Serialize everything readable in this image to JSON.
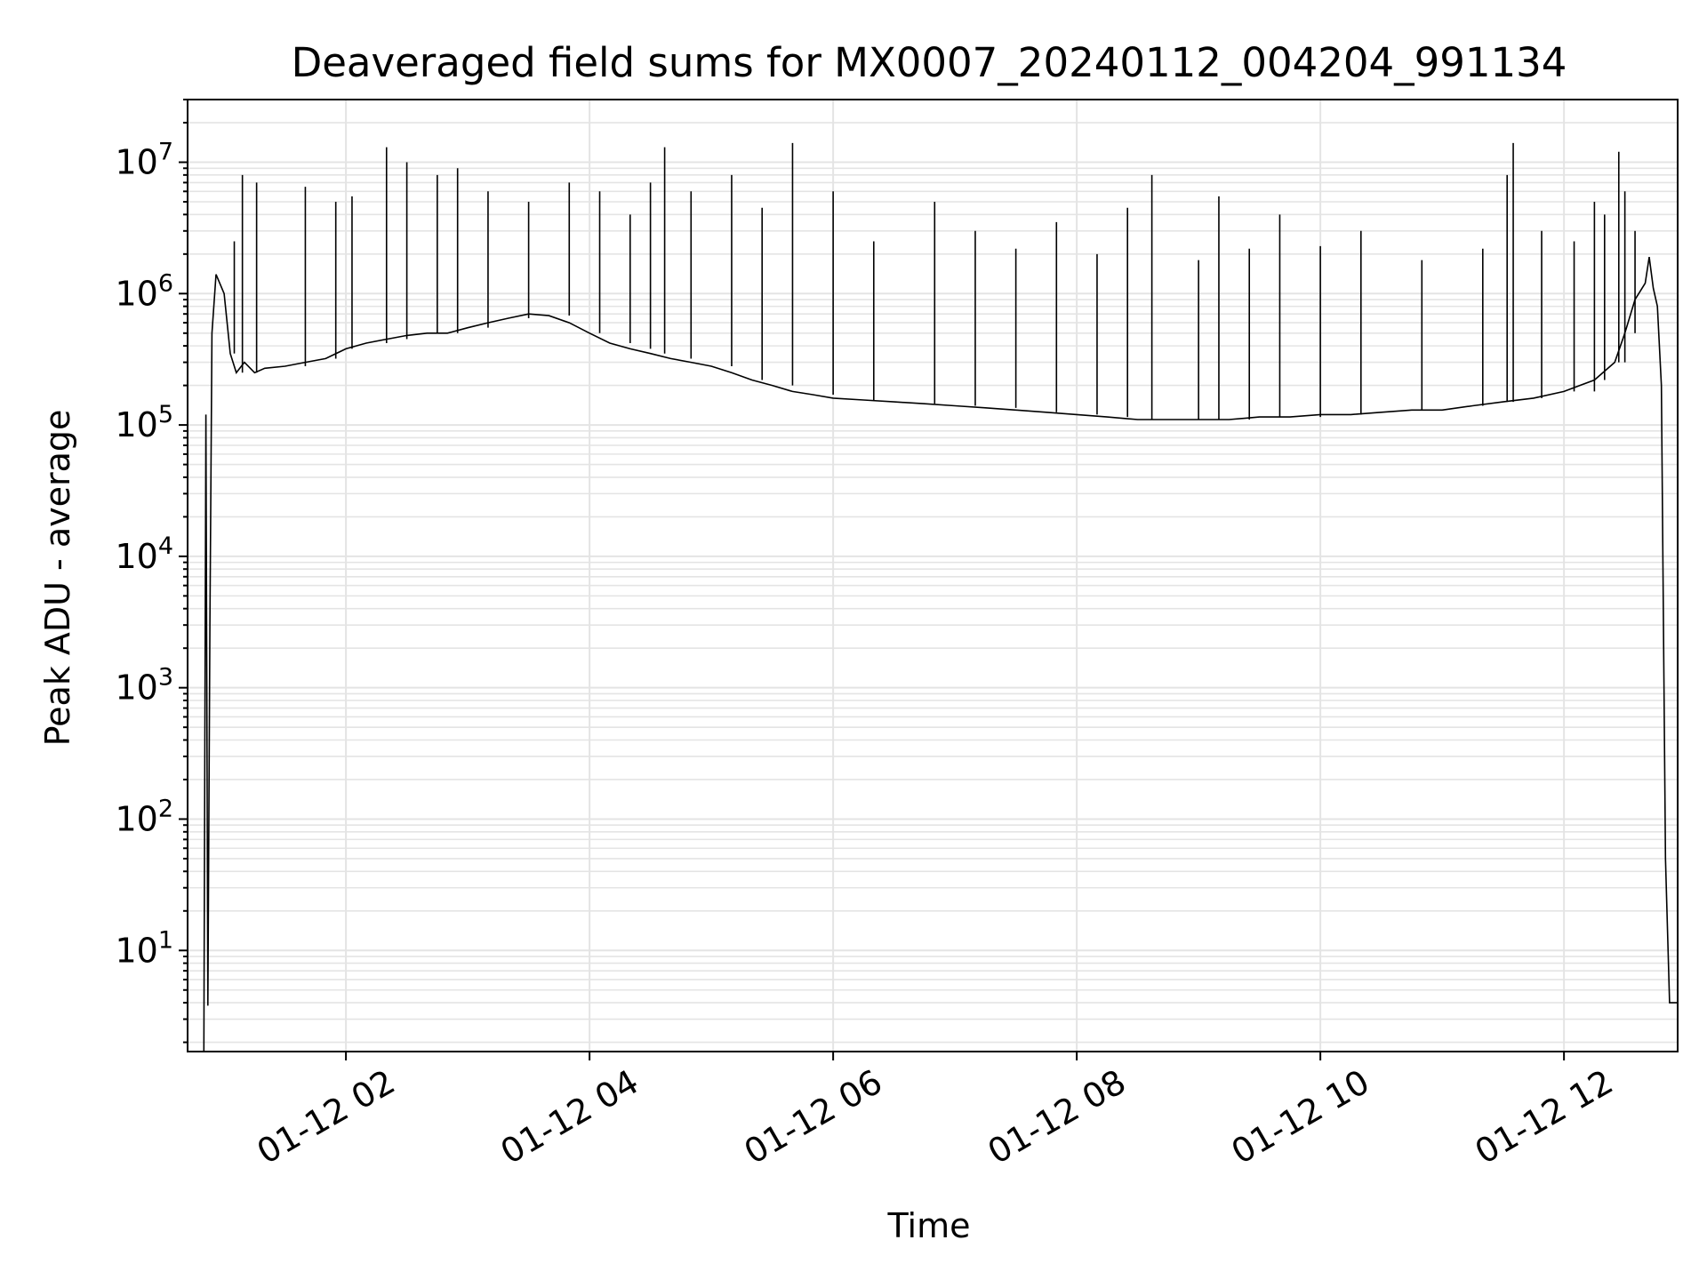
{
  "chart_data": {
    "type": "line",
    "title": "Deaveraged field sums for MX0007_20240112_004204_991134",
    "xlabel": "Time",
    "ylabel": "Peak ADU - average",
    "yscale": "log",
    "ylim": [
      1.7,
      30000000
    ],
    "xlim": [
      "2024-01-12 00:42",
      "2024-01-12 12:56"
    ],
    "grid": true,
    "x_ticks": [
      {
        "value": "2024-01-12 02:00",
        "label": "01-12 02"
      },
      {
        "value": "2024-01-12 04:00",
        "label": "01-12 04"
      },
      {
        "value": "2024-01-12 06:00",
        "label": "01-12 06"
      },
      {
        "value": "2024-01-12 08:00",
        "label": "01-12 08"
      },
      {
        "value": "2024-01-12 10:00",
        "label": "01-12 10"
      },
      {
        "value": "2024-01-12 12:00",
        "label": "01-12 12"
      }
    ],
    "y_ticks": [
      {
        "value": 10,
        "base": "10",
        "exp": "1"
      },
      {
        "value": 100,
        "base": "10",
        "exp": "2"
      },
      {
        "value": 1000,
        "base": "10",
        "exp": "3"
      },
      {
        "value": 10000,
        "base": "10",
        "exp": "4"
      },
      {
        "value": 100000,
        "base": "10",
        "exp": "5"
      },
      {
        "value": 1000000,
        "base": "10",
        "exp": "6"
      },
      {
        "value": 10000000,
        "base": "10",
        "exp": "7"
      }
    ],
    "series": [
      {
        "color": "#000000",
        "x": [
          "2024-01-12 00:50",
          "2024-01-12 00:51",
          "2024-01-12 00:52",
          "2024-01-12 00:53",
          "2024-01-12 00:54",
          "2024-01-12 00:56",
          "2024-01-12 01:00",
          "2024-01-12 01:03",
          "2024-01-12 01:06",
          "2024-01-12 01:10",
          "2024-01-12 01:15",
          "2024-01-12 01:20",
          "2024-01-12 01:30",
          "2024-01-12 01:40",
          "2024-01-12 01:50",
          "2024-01-12 02:00",
          "2024-01-12 02:10",
          "2024-01-12 02:20",
          "2024-01-12 02:30",
          "2024-01-12 02:40",
          "2024-01-12 02:50",
          "2024-01-12 03:00",
          "2024-01-12 03:10",
          "2024-01-12 03:20",
          "2024-01-12 03:30",
          "2024-01-12 03:40",
          "2024-01-12 03:50",
          "2024-01-12 04:00",
          "2024-01-12 04:10",
          "2024-01-12 04:20",
          "2024-01-12 04:30",
          "2024-01-12 04:40",
          "2024-01-12 04:50",
          "2024-01-12 05:00",
          "2024-01-12 05:10",
          "2024-01-12 05:20",
          "2024-01-12 05:30",
          "2024-01-12 05:40",
          "2024-01-12 05:50",
          "2024-01-12 06:00",
          "2024-01-12 06:15",
          "2024-01-12 06:30",
          "2024-01-12 06:45",
          "2024-01-12 07:00",
          "2024-01-12 07:15",
          "2024-01-12 07:30",
          "2024-01-12 07:45",
          "2024-01-12 08:00",
          "2024-01-12 08:15",
          "2024-01-12 08:30",
          "2024-01-12 08:45",
          "2024-01-12 09:00",
          "2024-01-12 09:15",
          "2024-01-12 09:30",
          "2024-01-12 09:45",
          "2024-01-12 10:00",
          "2024-01-12 10:15",
          "2024-01-12 10:30",
          "2024-01-12 10:45",
          "2024-01-12 11:00",
          "2024-01-12 11:15",
          "2024-01-12 11:30",
          "2024-01-12 11:45",
          "2024-01-12 12:00",
          "2024-01-12 12:15",
          "2024-01-12 12:25",
          "2024-01-12 12:30",
          "2024-01-12 12:35",
          "2024-01-12 12:40",
          "2024-01-12 12:42",
          "2024-01-12 12:44",
          "2024-01-12 12:46",
          "2024-01-12 12:48",
          "2024-01-12 12:50",
          "2024-01-12 12:52",
          "2024-01-12 12:54",
          "2024-01-12 12:56"
        ],
        "y": [
          1.7,
          120000,
          3.8,
          3000,
          500000,
          1400000,
          1000000,
          350000,
          250000,
          300000,
          250000,
          270000,
          280000,
          300000,
          320000,
          380000,
          420000,
          450000,
          480000,
          500000,
          500000,
          550000,
          600000,
          650000,
          700000,
          680000,
          600000,
          500000,
          420000,
          380000,
          350000,
          320000,
          300000,
          280000,
          250000,
          220000,
          200000,
          180000,
          170000,
          160000,
          155000,
          150000,
          145000,
          140000,
          135000,
          130000,
          125000,
          120000,
          115000,
          110000,
          110000,
          110000,
          110000,
          115000,
          115000,
          120000,
          120000,
          125000,
          130000,
          130000,
          140000,
          150000,
          160000,
          180000,
          220000,
          300000,
          500000,
          900000,
          1200000,
          1900000,
          1100000,
          800000,
          200000,
          50,
          4,
          4,
          4
        ],
        "spikes": [
          [
            "2024-01-12 01:05",
            2500000
          ],
          [
            "2024-01-12 01:09",
            8000000
          ],
          [
            "2024-01-12 01:16",
            7000000
          ],
          [
            "2024-01-12 01:40",
            6500000
          ],
          [
            "2024-01-12 01:55",
            5000000
          ],
          [
            "2024-01-12 02:03",
            5500000
          ],
          [
            "2024-01-12 02:20",
            13000000
          ],
          [
            "2024-01-12 02:30",
            10000000
          ],
          [
            "2024-01-12 02:45",
            8000000
          ],
          [
            "2024-01-12 02:55",
            9000000
          ],
          [
            "2024-01-12 03:10",
            6000000
          ],
          [
            "2024-01-12 03:30",
            5000000
          ],
          [
            "2024-01-12 03:50",
            7000000
          ],
          [
            "2024-01-12 04:05",
            6000000
          ],
          [
            "2024-01-12 04:20",
            4000000
          ],
          [
            "2024-01-12 04:30",
            7000000
          ],
          [
            "2024-01-12 04:37",
            13000000
          ],
          [
            "2024-01-12 04:50",
            6000000
          ],
          [
            "2024-01-12 05:10",
            8000000
          ],
          [
            "2024-01-12 05:25",
            4500000
          ],
          [
            "2024-01-12 05:40",
            14000000
          ],
          [
            "2024-01-12 06:00",
            6000000
          ],
          [
            "2024-01-12 06:20",
            2500000
          ],
          [
            "2024-01-12 06:50",
            5000000
          ],
          [
            "2024-01-12 07:10",
            3000000
          ],
          [
            "2024-01-12 07:30",
            2200000
          ],
          [
            "2024-01-12 07:50",
            3500000
          ],
          [
            "2024-01-12 08:10",
            2000000
          ],
          [
            "2024-01-12 08:25",
            4500000
          ],
          [
            "2024-01-12 08:37",
            8000000
          ],
          [
            "2024-01-12 09:00",
            1800000
          ],
          [
            "2024-01-12 09:10",
            5500000
          ],
          [
            "2024-01-12 09:25",
            2200000
          ],
          [
            "2024-01-12 09:40",
            4000000
          ],
          [
            "2024-01-12 10:00",
            2300000
          ],
          [
            "2024-01-12 10:20",
            3000000
          ],
          [
            "2024-01-12 10:50",
            1800000
          ],
          [
            "2024-01-12 11:20",
            2200000
          ],
          [
            "2024-01-12 11:32",
            8000000
          ],
          [
            "2024-01-12 11:35",
            14000000
          ],
          [
            "2024-01-12 11:49",
            3000000
          ],
          [
            "2024-01-12 12:05",
            2500000
          ],
          [
            "2024-01-12 12:15",
            5000000
          ],
          [
            "2024-01-12 12:20",
            4000000
          ],
          [
            "2024-01-12 12:27",
            12000000
          ],
          [
            "2024-01-12 12:30",
            6000000
          ],
          [
            "2024-01-12 12:35",
            3000000
          ]
        ]
      }
    ]
  }
}
